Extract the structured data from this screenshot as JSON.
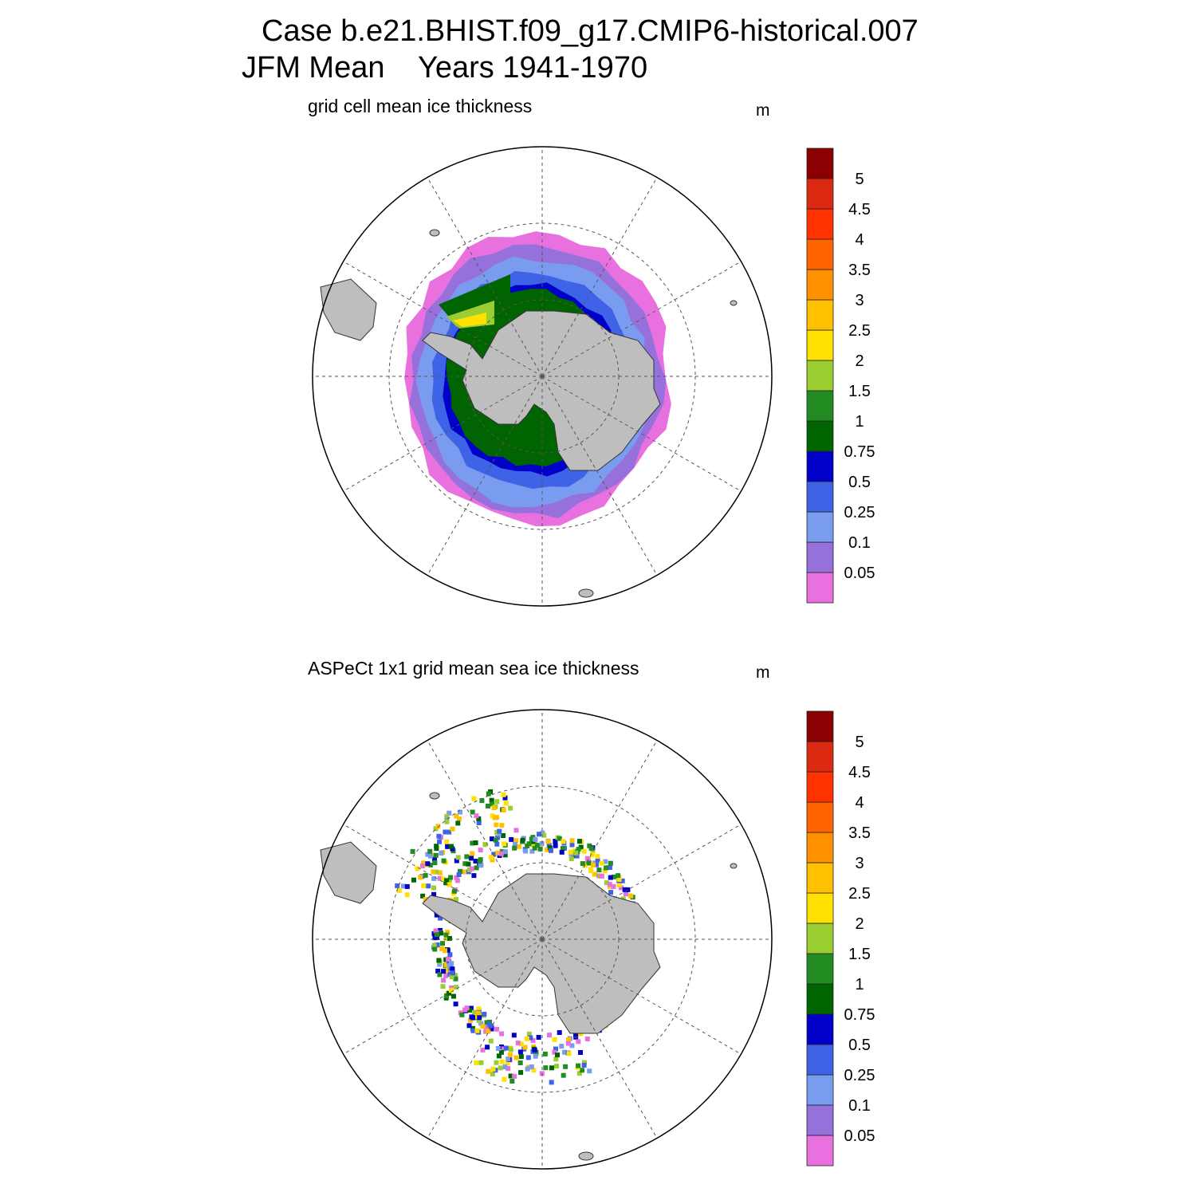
{
  "header": {
    "case_line": "Case b.e21.BHIST.f09_g17.CMIP6-historical.007",
    "season_line": "JFM Mean    Years 1941-1970"
  },
  "colors": {
    "land": "#bebebe",
    "grid_line": "#555555",
    "levels": [
      "#e871df",
      "#9671db",
      "#7a9cf0",
      "#3e63e6",
      "#0000c8",
      "#006400",
      "#228b22",
      "#9acd32",
      "#ffe000",
      "#ffc000",
      "#ff9000",
      "#ff6400",
      "#ff3200",
      "#dc2a12",
      "#8b0000"
    ]
  },
  "panels": [
    {
      "id": "model",
      "subtitle": "grid cell mean ice thickness",
      "unit": "m",
      "colorbar_labels": [
        "0.05",
        "0.1",
        "0.25",
        "0.5",
        "0.75",
        "1",
        "1.5",
        "2",
        "2.5",
        "3",
        "3.5",
        "4",
        "4.5",
        "5"
      ]
    },
    {
      "id": "obs",
      "subtitle": "ASPeCt 1x1 grid mean sea ice thickness",
      "unit": "m",
      "colorbar_labels": [
        "0.05",
        "0.1",
        "0.25",
        "0.5",
        "0.75",
        "1",
        "1.5",
        "2",
        "2.5",
        "3",
        "3.5",
        "4",
        "4.5",
        "5"
      ]
    }
  ]
}
